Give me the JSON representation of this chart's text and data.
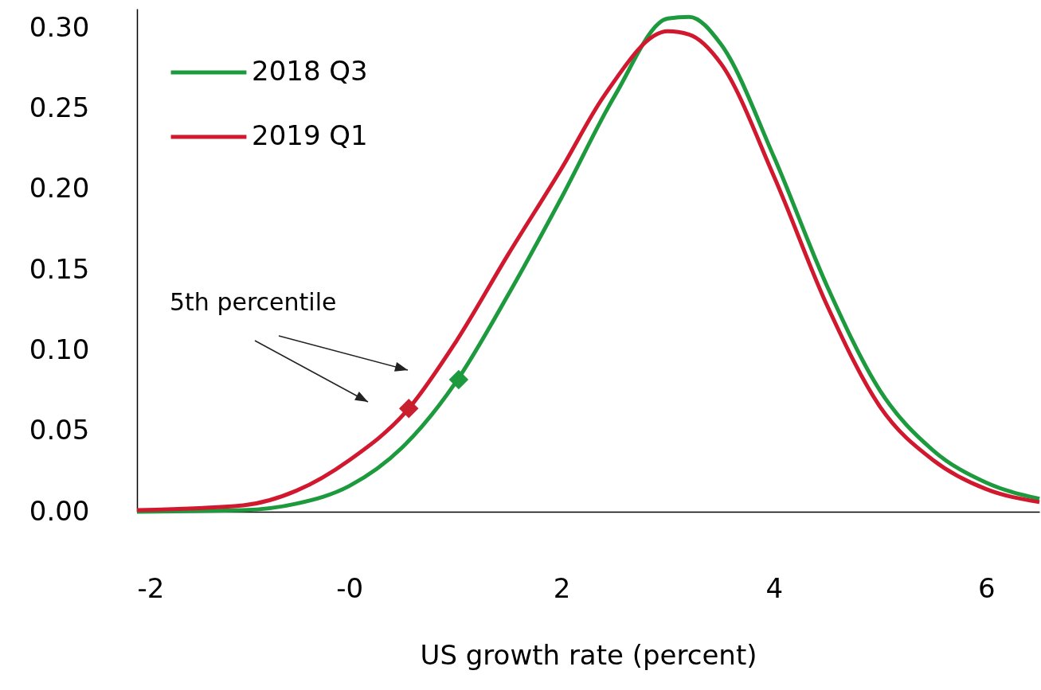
{
  "chart_data": {
    "type": "line",
    "xlabel": "US growth rate (percent)",
    "xlim": [
      -2,
      6.5
    ],
    "xticks": [
      -2,
      {
        "value": 0,
        "label": "-0"
      },
      2,
      4,
      6
    ],
    "ylim": [
      0,
      0.312
    ],
    "yticks": [
      {
        "value": 0,
        "label": "0.00"
      },
      {
        "value": 0.05,
        "label": "0.05"
      },
      {
        "value": 0.1,
        "label": "0.10"
      },
      {
        "value": 0.15,
        "label": "0.15"
      },
      {
        "value": 0.2,
        "label": "0.20"
      },
      {
        "value": 0.25,
        "label": "0.25"
      },
      {
        "value": 0.3,
        "label": "0.30"
      }
    ],
    "legend": "top left",
    "marker": "none",
    "line_style": "solid",
    "annotations": [
      "5th percentile"
    ],
    "series": [
      {
        "name": "2018 Q3",
        "color": "#1e9a3e",
        "x": [
          -2,
          -1,
          -0.5,
          0,
          0.5,
          1,
          1.5,
          2,
          2.5,
          3,
          3.2,
          3.5,
          4,
          4.5,
          5,
          5.5,
          6,
          6.5
        ],
        "values": [
          0,
          0.001,
          0.005,
          0.016,
          0.04,
          0.08,
          0.135,
          0.195,
          0.258,
          0.306,
          0.307,
          0.29,
          0.22,
          0.14,
          0.075,
          0.038,
          0.018,
          0.008
        ]
      },
      {
        "name": "2019 Q1",
        "color": "#d0192f",
        "x": [
          -2,
          -1,
          -0.5,
          0,
          0.56,
          1,
          1.5,
          2,
          2.4,
          3,
          3.2,
          3.5,
          4,
          4.5,
          5,
          5.5,
          6,
          6.5
        ],
        "values": [
          0.001,
          0.004,
          0.013,
          0.032,
          0.064,
          0.105,
          0.16,
          0.213,
          0.258,
          0.298,
          0.296,
          0.278,
          0.208,
          0.128,
          0.065,
          0.032,
          0.014,
          0.006
        ]
      },
      {
        "type": "scatter",
        "marker": "diamond",
        "color": "#1e9a3e",
        "x": [
          1.03
        ],
        "values": [
          0.082
        ]
      },
      {
        "type": "scatter",
        "marker": "diamond",
        "color": "#c8202f",
        "x": [
          0.56
        ],
        "values": [
          0.064
        ]
      }
    ]
  }
}
